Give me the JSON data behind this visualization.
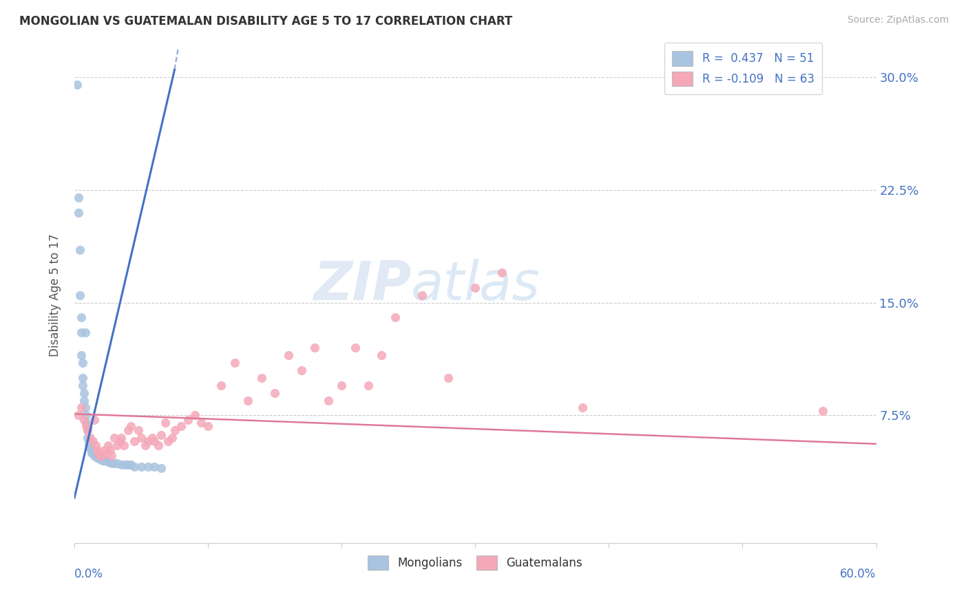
{
  "title": "MONGOLIAN VS GUATEMALAN DISABILITY AGE 5 TO 17 CORRELATION CHART",
  "source": "Source: ZipAtlas.com",
  "ylabel": "Disability Age 5 to 17",
  "ytick_labels": [
    "7.5%",
    "15.0%",
    "22.5%",
    "30.0%"
  ],
  "ytick_values": [
    0.075,
    0.15,
    0.225,
    0.3
  ],
  "xlim": [
    0.0,
    0.6
  ],
  "ylim": [
    -0.01,
    0.32
  ],
  "mongolian_color": "#a8c4e0",
  "guatemalan_color": "#f4a8b8",
  "mongolian_line_color": "#4472c4",
  "guatemalan_line_color": "#e07898",
  "watermark_zip": "ZIP",
  "watermark_atlas": "atlas",
  "mongolian_scatter_x": [
    0.002,
    0.003,
    0.003,
    0.004,
    0.004,
    0.005,
    0.005,
    0.005,
    0.006,
    0.006,
    0.006,
    0.007,
    0.007,
    0.008,
    0.008,
    0.009,
    0.009,
    0.01,
    0.01,
    0.01,
    0.011,
    0.011,
    0.012,
    0.012,
    0.013,
    0.013,
    0.014,
    0.015,
    0.015,
    0.016,
    0.017,
    0.018,
    0.019,
    0.02,
    0.021,
    0.022,
    0.023,
    0.025,
    0.026,
    0.028,
    0.03,
    0.032,
    0.035,
    0.038,
    0.04,
    0.042,
    0.045,
    0.05,
    0.055,
    0.06,
    0.065
  ],
  "mongolian_scatter_y": [
    0.295,
    0.22,
    0.21,
    0.185,
    0.155,
    0.14,
    0.13,
    0.115,
    0.11,
    0.1,
    0.095,
    0.09,
    0.085,
    0.13,
    0.08,
    0.075,
    0.07,
    0.068,
    0.065,
    0.06,
    0.058,
    0.055,
    0.055,
    0.053,
    0.052,
    0.05,
    0.05,
    0.05,
    0.048,
    0.048,
    0.047,
    0.047,
    0.046,
    0.046,
    0.045,
    0.045,
    0.045,
    0.044,
    0.044,
    0.043,
    0.043,
    0.043,
    0.042,
    0.042,
    0.042,
    0.042,
    0.041,
    0.041,
    0.041,
    0.041,
    0.04
  ],
  "guatemalan_scatter_x": [
    0.003,
    0.005,
    0.007,
    0.009,
    0.01,
    0.012,
    0.014,
    0.015,
    0.016,
    0.017,
    0.018,
    0.019,
    0.02,
    0.022,
    0.024,
    0.025,
    0.027,
    0.028,
    0.03,
    0.032,
    0.034,
    0.035,
    0.037,
    0.04,
    0.042,
    0.045,
    0.048,
    0.05,
    0.053,
    0.055,
    0.058,
    0.06,
    0.063,
    0.065,
    0.068,
    0.07,
    0.073,
    0.075,
    0.08,
    0.085,
    0.09,
    0.095,
    0.1,
    0.11,
    0.12,
    0.13,
    0.14,
    0.15,
    0.16,
    0.17,
    0.18,
    0.19,
    0.2,
    0.21,
    0.22,
    0.23,
    0.24,
    0.26,
    0.28,
    0.3,
    0.32,
    0.38,
    0.56
  ],
  "guatemalan_scatter_y": [
    0.075,
    0.08,
    0.072,
    0.068,
    0.065,
    0.06,
    0.058,
    0.072,
    0.055,
    0.052,
    0.05,
    0.048,
    0.048,
    0.052,
    0.05,
    0.055,
    0.052,
    0.048,
    0.06,
    0.055,
    0.058,
    0.06,
    0.055,
    0.065,
    0.068,
    0.058,
    0.065,
    0.06,
    0.055,
    0.058,
    0.06,
    0.058,
    0.055,
    0.062,
    0.07,
    0.058,
    0.06,
    0.065,
    0.068,
    0.072,
    0.075,
    0.07,
    0.068,
    0.095,
    0.11,
    0.085,
    0.1,
    0.09,
    0.115,
    0.105,
    0.12,
    0.085,
    0.095,
    0.12,
    0.095,
    0.115,
    0.14,
    0.155,
    0.1,
    0.16,
    0.17,
    0.08,
    0.078
  ],
  "mongolian_trend_x": [
    0.0,
    0.075
  ],
  "mongolian_trend_y": [
    0.02,
    0.305
  ],
  "guatemalan_trend_x": [
    0.0,
    0.6
  ],
  "guatemalan_trend_y": [
    0.076,
    0.056
  ]
}
